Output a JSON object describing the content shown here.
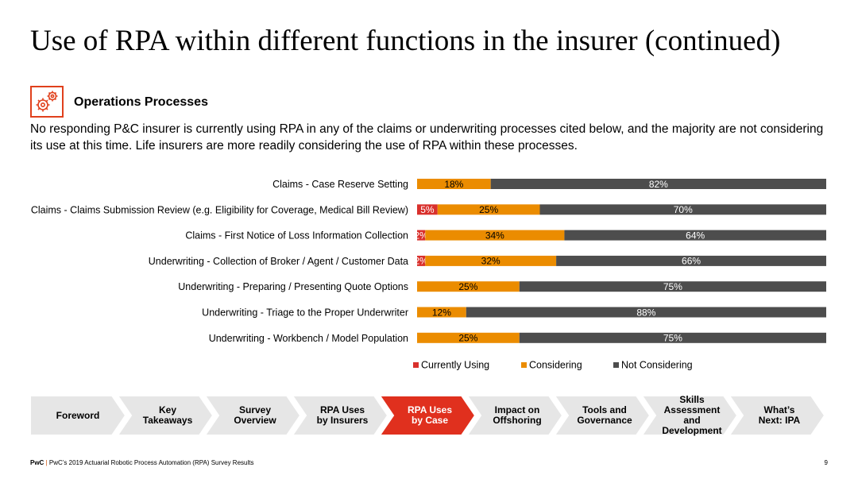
{
  "title": "Use of RPA within different functions in the insurer (continued)",
  "section": {
    "icon": "gears-icon",
    "heading": "Operations Processes"
  },
  "summary": "No responding P&C insurer is currently using RPA in any of the claims or underwriting processes cited below, and the majority are not considering its use at this time. Life insurers are more readily considering the use of RPA within these processes.",
  "chart_data": {
    "type": "bar",
    "orientation": "horizontal",
    "stacked": true,
    "percent_stacked": true,
    "categories": [
      "Claims - Case Reserve Setting",
      "Claims - Claims Submission Review (e.g. Eligibility for Coverage, Medical Bill Review)",
      "Claims - First Notice of Loss Information Collection",
      "Underwriting - Collection of Broker / Agent / Customer Data",
      "Underwriting - Preparing / Presenting Quote Options",
      "Underwriting - Triage to the Proper Underwriter",
      "Underwriting - Workbench / Model Population"
    ],
    "series": [
      {
        "name": "Currently Using",
        "color": "#d9302c",
        "values": [
          0,
          5,
          2,
          2,
          0,
          0,
          0
        ],
        "labels": [
          "",
          "5%",
          "2%",
          "2%",
          "",
          "",
          ""
        ]
      },
      {
        "name": "Considering",
        "color": "#eb8c00",
        "values": [
          18,
          25,
          34,
          32,
          25,
          12,
          25
        ],
        "labels": [
          "18%",
          "25%",
          "34%",
          "32%",
          "25%",
          "12%",
          "25%"
        ]
      },
      {
        "name": "Not Considering",
        "color": "#4d4d4d",
        "values": [
          82,
          70,
          64,
          66,
          75,
          88,
          75
        ],
        "labels": [
          "82%",
          "70%",
          "64%",
          "66%",
          "75%",
          "88%",
          "75%"
        ]
      }
    ],
    "xlim": [
      0,
      100
    ],
    "grid": false,
    "legend": "bottom",
    "title": "",
    "xlabel": "",
    "ylabel": ""
  },
  "nav": {
    "steps": [
      {
        "label": "Foreword",
        "active": false
      },
      {
        "label": "Key\nTakeaways",
        "active": false
      },
      {
        "label": "Survey\nOverview",
        "active": false
      },
      {
        "label": "RPA Uses\nby Insurers",
        "active": false
      },
      {
        "label": "RPA Uses\nby Case",
        "active": true
      },
      {
        "label": "Impact on\nOffshoring",
        "active": false
      },
      {
        "label": "Tools and\nGovernance",
        "active": false
      },
      {
        "label": "Skills\nAssessment\nand\nDevelopment",
        "active": false
      },
      {
        "label": "What’s\nNext: IPA",
        "active": false
      }
    ],
    "colors": {
      "inactive": "#e6e6e6",
      "active": "#e0301e"
    }
  },
  "footer": {
    "brand": "PwC",
    "separator": "|",
    "text": "PwC’s 2019 Actuarial Robotic Process Automation (RPA) Survey Results",
    "page_number": "9"
  }
}
